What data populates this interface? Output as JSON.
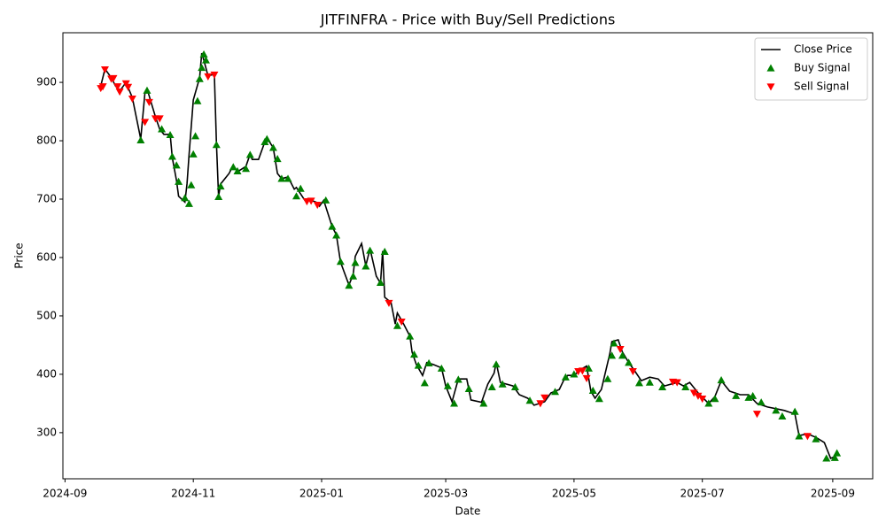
{
  "chart_data": {
    "type": "line",
    "title": "JITFINFRA - Price with Buy/Sell Predictions",
    "x_label": "Date",
    "y_label": "Price",
    "xlim": [
      "2024-08-31",
      "2025-09-20"
    ],
    "xticks": [
      {
        "value": "2024-09-01",
        "label": "2024-09"
      },
      {
        "value": "2024-11-01",
        "label": "2024-11"
      },
      {
        "value": "2025-01-01",
        "label": "2025-01"
      },
      {
        "value": "2025-03-01",
        "label": "2025-03"
      },
      {
        "value": "2025-05-01",
        "label": "2025-05"
      },
      {
        "value": "2025-07-01",
        "label": "2025-07"
      },
      {
        "value": "2025-09-01",
        "label": "2025-09"
      }
    ],
    "ylim": [
      221,
      985
    ],
    "yticks": [
      300,
      400,
      500,
      600,
      700,
      800,
      900
    ],
    "legend": "upper right",
    "series": [
      {
        "name": "Close Price",
        "color": "#000000",
        "type": "line",
        "x": [
          "2024-09-18",
          "2024-09-20",
          "2024-09-23",
          "2024-09-25",
          "2024-09-27",
          "2024-09-30",
          "2024-10-03",
          "2024-10-07",
          "2024-10-09",
          "2024-10-10",
          "2024-10-14",
          "2024-10-16",
          "2024-10-18",
          "2024-10-21",
          "2024-10-22",
          "2024-10-24",
          "2024-10-25",
          "2024-10-28",
          "2024-10-29",
          "2024-10-30",
          "2024-11-01",
          "2024-11-04",
          "2024-11-05",
          "2024-11-06",
          "2024-11-08",
          "2024-11-11",
          "2024-11-12",
          "2024-11-13",
          "2024-11-14",
          "2024-11-18",
          "2024-11-20",
          "2024-11-22",
          "2024-11-26",
          "2024-11-28",
          "2024-11-29",
          "2024-12-02",
          "2024-12-05",
          "2024-12-06",
          "2024-12-09",
          "2024-12-11",
          "2024-12-13",
          "2024-12-16",
          "2024-12-19",
          "2024-12-20",
          "2024-12-24",
          "2024-12-27",
          "2024-12-30",
          "2024-12-31",
          "2025-01-02",
          "2025-01-06",
          "2025-01-08",
          "2025-01-10",
          "2025-01-14",
          "2025-01-16",
          "2025-01-17",
          "2025-01-20",
          "2025-01-22",
          "2025-01-24",
          "2025-01-27",
          "2025-01-29",
          "2025-01-30",
          "2025-01-31",
          "2025-02-03",
          "2025-02-05",
          "2025-02-06",
          "2025-02-09",
          "2025-02-12",
          "2025-02-13",
          "2025-02-15",
          "2025-02-18",
          "2025-02-20",
          "2025-02-23",
          "2025-02-27",
          "2025-03-01",
          "2025-03-04",
          "2025-03-07",
          "2025-03-11",
          "2025-03-13",
          "2025-03-18",
          "2025-03-21",
          "2025-03-24",
          "2025-03-25",
          "2025-03-27",
          "2025-04-02",
          "2025-04-05",
          "2025-04-09",
          "2025-04-12",
          "2025-04-17",
          "2025-04-20",
          "2025-04-24",
          "2025-04-26",
          "2025-04-28",
          "2025-05-01",
          "2025-05-04",
          "2025-05-07",
          "2025-05-09",
          "2025-05-11",
          "2025-05-14",
          "2025-05-18",
          "2025-05-19",
          "2025-05-22",
          "2025-05-24",
          "2025-05-27",
          "2025-05-30",
          "2025-06-02",
          "2025-06-06",
          "2025-06-10",
          "2025-06-13",
          "2025-06-19",
          "2025-06-22",
          "2025-06-25",
          "2025-06-29",
          "2025-07-04",
          "2025-07-07",
          "2025-07-10",
          "2025-07-14",
          "2025-07-19",
          "2025-07-23",
          "2025-07-27",
          "2025-08-01",
          "2025-08-05",
          "2025-08-09",
          "2025-08-14",
          "2025-08-16",
          "2025-08-20",
          "2025-08-24",
          "2025-08-28",
          "2025-08-31",
          "2025-09-02",
          "2025-09-03"
        ],
        "values": [
          894,
          923,
          908,
          894,
          885,
          900,
          874,
          803,
          882,
          889,
          841,
          820,
          811,
          811,
          771,
          732,
          705,
          695,
          726,
          777,
          870,
          908,
          950,
          938,
          911,
          914,
          795,
          705,
          726,
          744,
          758,
          747,
          756,
          777,
          768,
          768,
          798,
          805,
          788,
          744,
          735,
          738,
          717,
          720,
          698,
          698,
          694,
          688,
          698,
          653,
          639,
          592,
          553,
          571,
          602,
          624,
          586,
          615,
          568,
          556,
          611,
          532,
          523,
          486,
          505,
          486,
          465,
          438,
          417,
          398,
          420,
          417,
          411,
          380,
          353,
          392,
          392,
          356,
          352,
          383,
          402,
          420,
          386,
          380,
          365,
          359,
          347,
          353,
          368,
          374,
          389,
          398,
          398,
          408,
          414,
          371,
          359,
          374,
          435,
          456,
          459,
          438,
          420,
          405,
          389,
          395,
          392,
          380,
          386,
          380,
          386,
          368,
          350,
          362,
          389,
          371,
          365,
          365,
          350,
          344,
          341,
          338,
          332,
          295,
          298,
          292,
          283,
          256,
          259,
          265
        ]
      },
      {
        "name": "Buy Signal",
        "color": "#008000",
        "type": "scatter",
        "marker": "^",
        "x": [
          "2024-10-07",
          "2024-10-10",
          "2024-10-17",
          "2024-10-21",
          "2024-10-22",
          "2024-10-24",
          "2024-10-25",
          "2024-10-28",
          "2024-10-30",
          "2024-10-31",
          "2024-11-01",
          "2024-11-02",
          "2024-11-03",
          "2024-11-04",
          "2024-11-05",
          "2024-11-06",
          "2024-11-07",
          "2024-11-12",
          "2024-11-13",
          "2024-11-14",
          "2024-11-20",
          "2024-11-22",
          "2024-11-26",
          "2024-11-28",
          "2024-12-05",
          "2024-12-06",
          "2024-12-09",
          "2024-12-11",
          "2024-12-13",
          "2024-12-16",
          "2024-12-20",
          "2024-12-22",
          "2025-01-03",
          "2025-01-06",
          "2025-01-08",
          "2025-01-10",
          "2025-01-14",
          "2025-01-16",
          "2025-01-17",
          "2025-01-22",
          "2025-01-24",
          "2025-01-29",
          "2025-01-31",
          "2025-02-06",
          "2025-02-12",
          "2025-02-14",
          "2025-02-16",
          "2025-02-19",
          "2025-02-21",
          "2025-02-27",
          "2025-03-02",
          "2025-03-05",
          "2025-03-07",
          "2025-03-12",
          "2025-03-19",
          "2025-03-23",
          "2025-03-25",
          "2025-03-28",
          "2025-04-03",
          "2025-04-10",
          "2025-04-22",
          "2025-04-27",
          "2025-05-01",
          "2025-05-08",
          "2025-05-10",
          "2025-05-13",
          "2025-05-17",
          "2025-05-19",
          "2025-05-20",
          "2025-05-24",
          "2025-05-27",
          "2025-06-01",
          "2025-06-06",
          "2025-06-12",
          "2025-06-23",
          "2025-07-04",
          "2025-07-07",
          "2025-07-10",
          "2025-07-17",
          "2025-07-23",
          "2025-07-25",
          "2025-07-29",
          "2025-08-05",
          "2025-08-08",
          "2025-08-14",
          "2025-08-16",
          "2025-08-24",
          "2025-08-29",
          "2025-09-02",
          "2025-09-03"
        ],
        "values": [
          801,
          886,
          820,
          810,
          773,
          758,
          730,
          702,
          692,
          724,
          777,
          808,
          868,
          906,
          925,
          948,
          938,
          793,
          704,
          722,
          755,
          748,
          752,
          776,
          798,
          803,
          788,
          769,
          735,
          735,
          705,
          718,
          698,
          653,
          638,
          593,
          552,
          568,
          591,
          585,
          612,
          557,
          610,
          483,
          465,
          434,
          415,
          385,
          419,
          410,
          380,
          350,
          391,
          375,
          350,
          378,
          417,
          383,
          378,
          355,
          370,
          395,
          400,
          410,
          372,
          358,
          392,
          432,
          453,
          432,
          420,
          385,
          386,
          378,
          378,
          350,
          358,
          390,
          363,
          360,
          363,
          352,
          338,
          328,
          336,
          294,
          289,
          256,
          257,
          265
        ]
      },
      {
        "name": "Sell Signal",
        "color": "#ff0000",
        "type": "scatter",
        "marker": "v",
        "x": [
          "2024-09-18",
          "2024-09-19",
          "2024-09-20",
          "2024-09-23",
          "2024-09-24",
          "2024-09-26",
          "2024-09-27",
          "2024-09-30",
          "2024-10-01",
          "2024-10-03",
          "2024-10-09",
          "2024-10-11",
          "2024-10-14",
          "2024-10-16",
          "2024-11-08",
          "2024-11-11",
          "2024-12-25",
          "2024-12-27",
          "2024-12-30",
          "2025-02-02",
          "2025-02-08",
          "2025-04-15",
          "2025-04-17",
          "2025-05-03",
          "2025-05-05",
          "2025-05-07",
          "2025-05-23",
          "2025-05-29",
          "2025-06-17",
          "2025-06-19",
          "2025-06-27",
          "2025-06-29",
          "2025-07-01",
          "2025-07-27",
          "2025-08-20"
        ],
        "values": [
          890,
          893,
          922,
          906,
          907,
          893,
          884,
          898,
          892,
          872,
          832,
          866,
          838,
          838,
          910,
          913,
          696,
          697,
          690,
          522,
          490,
          350,
          360,
          405,
          406,
          393,
          443,
          405,
          387,
          386,
          368,
          363,
          358,
          332,
          294
        ]
      }
    ]
  }
}
